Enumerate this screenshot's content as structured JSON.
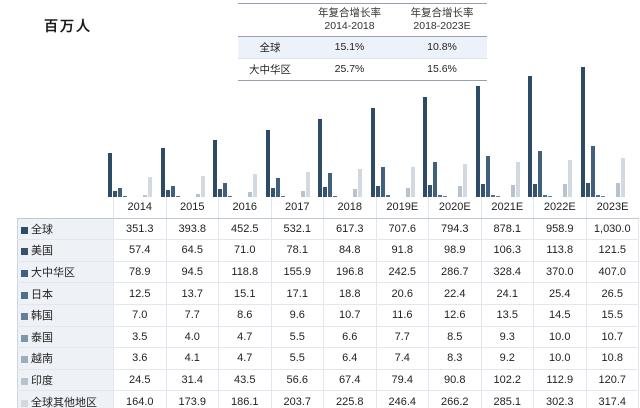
{
  "title": "百万人",
  "cagr_table": {
    "headers": [
      {
        "line1": "年复合增长率",
        "line2": "2014-2018"
      },
      {
        "line1": "年复合增长率",
        "line2": "2018-2023E"
      }
    ],
    "rows": [
      {
        "label": "全球",
        "v1": "15.1%",
        "v2": "10.8%",
        "highlighted": true
      },
      {
        "label": "大中华区",
        "v1": "25.7%",
        "v2": "15.6%",
        "highlighted": false
      }
    ]
  },
  "chart_data": {
    "type": "bar",
    "title": "百万人",
    "unit_label": "百万人",
    "categories": [
      "2014",
      "2015",
      "2016",
      "2017",
      "2018",
      "2019E",
      "2020E",
      "2021E",
      "2022E",
      "2023E"
    ],
    "series": [
      {
        "name": "全球",
        "color": "#2d4a66",
        "values": [
          351.3,
          393.8,
          452.5,
          532.1,
          617.3,
          707.6,
          794.3,
          878.1,
          958.9,
          1030.0
        ]
      },
      {
        "name": "美国",
        "color": "#35536f",
        "values": [
          57.4,
          64.5,
          71.0,
          78.1,
          84.8,
          91.8,
          98.9,
          106.3,
          113.8,
          121.5
        ]
      },
      {
        "name": "大中华区",
        "color": "#41607d",
        "values": [
          78.9,
          94.5,
          118.8,
          155.9,
          196.8,
          242.5,
          286.7,
          328.4,
          370.0,
          407.0
        ]
      },
      {
        "name": "日本",
        "color": "#51708c",
        "values": [
          12.5,
          13.7,
          15.1,
          17.1,
          18.8,
          20.6,
          22.4,
          24.1,
          25.4,
          26.5
        ]
      },
      {
        "name": "韩国",
        "color": "#647f98",
        "values": [
          7.0,
          7.7,
          8.6,
          9.6,
          10.7,
          11.6,
          12.6,
          13.5,
          14.5,
          15.5
        ]
      },
      {
        "name": "泰国",
        "color": "#7f95a9",
        "values": [
          3.5,
          4.0,
          4.7,
          5.5,
          6.6,
          7.7,
          8.5,
          9.3,
          10.0,
          10.7
        ]
      },
      {
        "name": "越南",
        "color": "#9dadbe",
        "values": [
          3.6,
          4.1,
          4.7,
          5.5,
          6.4,
          7.4,
          8.3,
          9.2,
          10.0,
          10.8
        ]
      },
      {
        "name": "印度",
        "color": "#b9c3ce",
        "values": [
          24.5,
          31.4,
          43.5,
          56.6,
          67.4,
          79.4,
          90.8,
          102.2,
          112.9,
          120.7
        ]
      },
      {
        "name": "全球其他地区",
        "color": "#d2d9e1",
        "values": [
          164.0,
          173.9,
          186.1,
          203.7,
          225.8,
          246.4,
          266.2,
          285.1,
          302.3,
          317.4
        ]
      }
    ],
    "ylim": [
      0,
      1085
    ],
    "grid": false,
    "legend_position": "table-row-labels"
  },
  "table": {
    "col_headers": [
      "2014",
      "2015",
      "2016",
      "2017",
      "2018",
      "2019E",
      "2020E",
      "2021E",
      "2022E",
      "2023E"
    ],
    "rows": [
      {
        "label": "全球",
        "values": [
          "351.3",
          "393.8",
          "452.5",
          "532.1",
          "617.3",
          "707.6",
          "794.3",
          "878.1",
          "958.9",
          "1,030.0"
        ]
      },
      {
        "label": "美国",
        "values": [
          "57.4",
          "64.5",
          "71.0",
          "78.1",
          "84.8",
          "91.8",
          "98.9",
          "106.3",
          "113.8",
          "121.5"
        ]
      },
      {
        "label": "大中华区",
        "values": [
          "78.9",
          "94.5",
          "118.8",
          "155.9",
          "196.8",
          "242.5",
          "286.7",
          "328.4",
          "370.0",
          "407.0"
        ]
      },
      {
        "label": "日本",
        "values": [
          "12.5",
          "13.7",
          "15.1",
          "17.1",
          "18.8",
          "20.6",
          "22.4",
          "24.1",
          "25.4",
          "26.5"
        ]
      },
      {
        "label": "韩国",
        "values": [
          "7.0",
          "7.7",
          "8.6",
          "9.6",
          "10.7",
          "11.6",
          "12.6",
          "13.5",
          "14.5",
          "15.5"
        ]
      },
      {
        "label": "泰国",
        "values": [
          "3.5",
          "4.0",
          "4.7",
          "5.5",
          "6.6",
          "7.7",
          "8.5",
          "9.3",
          "10.0",
          "10.7"
        ]
      },
      {
        "label": "越南",
        "values": [
          "3.6",
          "4.1",
          "4.7",
          "5.5",
          "6.4",
          "7.4",
          "8.3",
          "9.2",
          "10.0",
          "10.8"
        ]
      },
      {
        "label": "印度",
        "values": [
          "24.5",
          "31.4",
          "43.5",
          "56.6",
          "67.4",
          "79.4",
          "90.8",
          "102.2",
          "112.9",
          "120.7"
        ]
      },
      {
        "label": "全球其他地区",
        "values": [
          "164.0",
          "173.9",
          "186.1",
          "203.7",
          "225.8",
          "246.4",
          "266.2",
          "285.1",
          "302.3",
          "317.4"
        ]
      }
    ]
  }
}
